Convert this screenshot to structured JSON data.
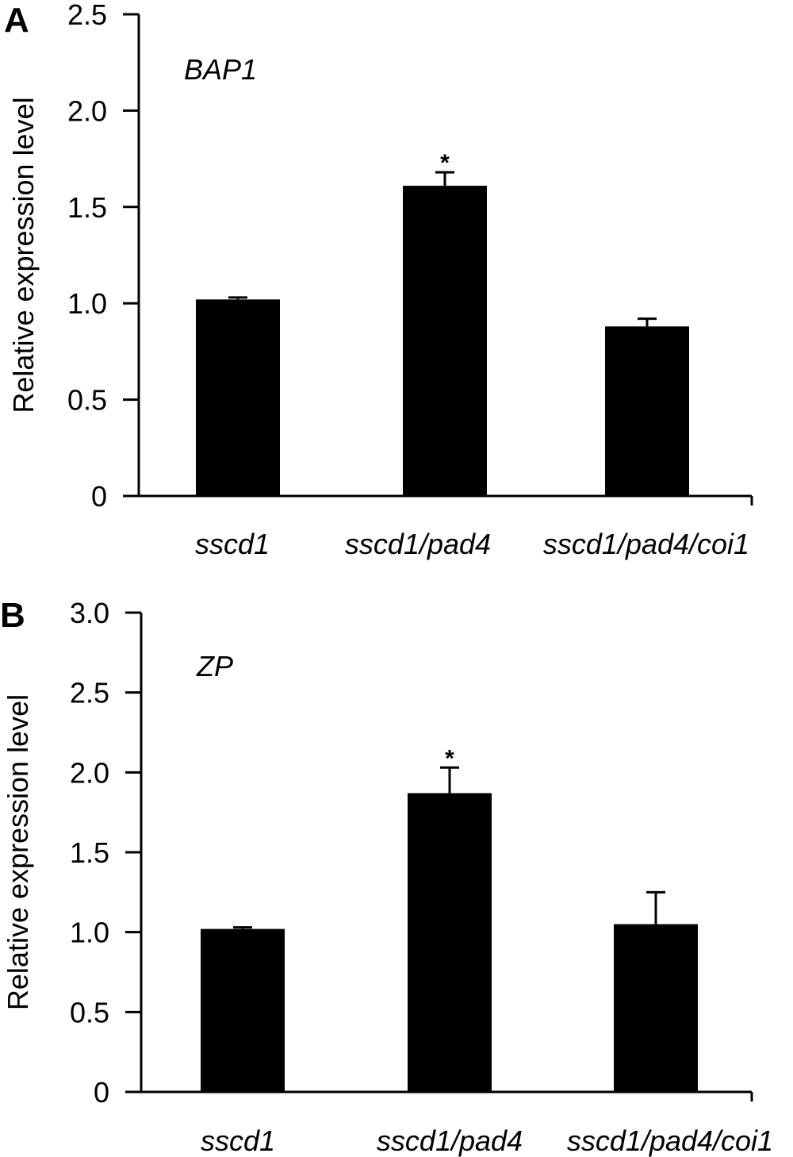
{
  "chart_data": [
    {
      "type": "bar",
      "panel": "A",
      "gene": "BAP1",
      "ylabel": "Relative expression level",
      "xlabel": "",
      "ylim": [
        0,
        2.5
      ],
      "yticks": [
        0,
        0.5,
        1.0,
        1.5,
        2.0,
        2.5
      ],
      "ytick_labels": [
        "0",
        "0.5",
        "1.0",
        "1.5",
        "2.0",
        "2.5"
      ],
      "categories": [
        "sscd1",
        "sscd1/pad4",
        "sscd1/pad4/coi1"
      ],
      "values": [
        1.02,
        1.61,
        0.88
      ],
      "errors": [
        0.01,
        0.07,
        0.04
      ],
      "annotations": [
        "",
        "*",
        ""
      ],
      "grid": false,
      "bar_color": "#000000"
    },
    {
      "type": "bar",
      "panel": "B",
      "gene": "ZP",
      "ylabel": "Relative expression level",
      "xlabel": "",
      "ylim": [
        0,
        3.0
      ],
      "yticks": [
        0,
        0.5,
        1.0,
        1.5,
        2.0,
        2.5,
        3.0
      ],
      "ytick_labels": [
        "0",
        "0.5",
        "1.0",
        "1.5",
        "2.0",
        "2.5",
        "3.0"
      ],
      "categories": [
        "sscd1",
        "sscd1/pad4",
        "sscd1/pad4/coi1"
      ],
      "values": [
        1.02,
        1.87,
        1.05
      ],
      "errors": [
        0.01,
        0.16,
        0.2
      ],
      "annotations": [
        "",
        "*",
        ""
      ],
      "grid": false,
      "bar_color": "#000000"
    }
  ]
}
